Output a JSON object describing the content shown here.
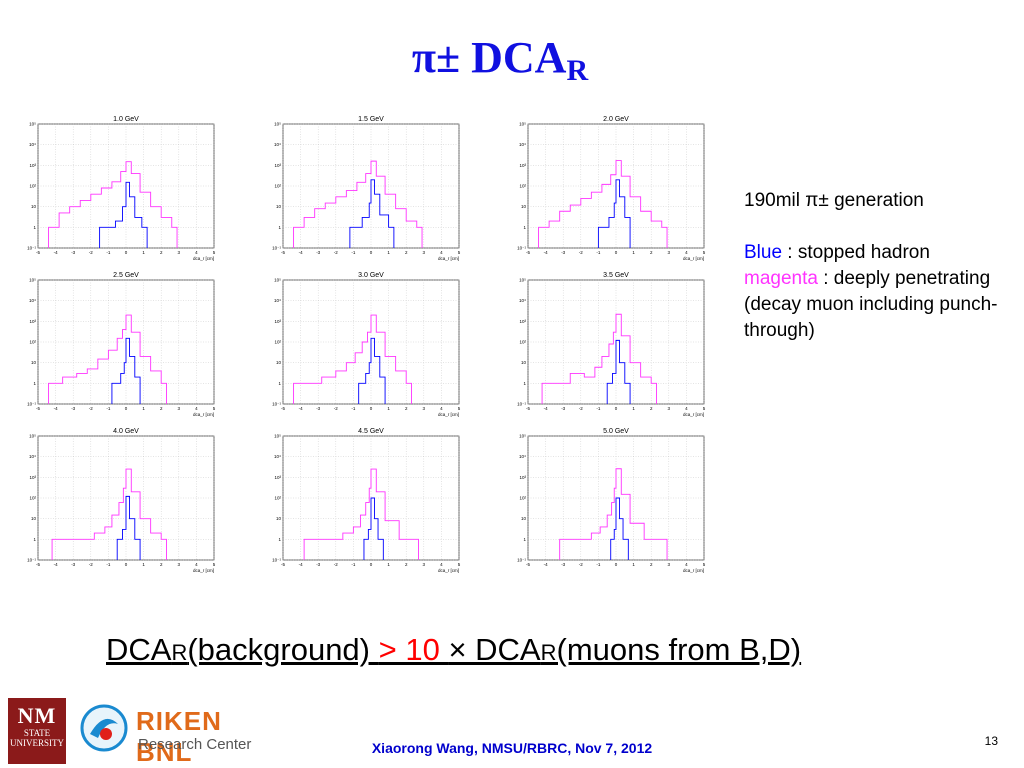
{
  "title": {
    "main": "π± DCA",
    "sub": "R"
  },
  "chart_data": [
    {
      "type": "histogram",
      "title": "1.0 GeV",
      "xlabel": "dca_r [cm]",
      "log_y": true,
      "xlim": [
        -5,
        5
      ],
      "ylim": [
        0.1,
        100000
      ],
      "x_ticks": [
        "-5",
        "-4",
        "-3",
        "-2",
        "-1",
        "0",
        "1",
        "2",
        "3",
        "4",
        "5"
      ],
      "y_ticks": [
        "10⁻¹",
        "1",
        "10",
        "10²",
        "10³",
        "10⁴",
        "10⁵"
      ],
      "series": [
        {
          "color": "#ff33ff",
          "bins": [
            [
              -4.4,
              1
            ],
            [
              -3.8,
              5
            ],
            [
              -3.2,
              10
            ],
            [
              -2.6,
              20
            ],
            [
              -2.0,
              40
            ],
            [
              -1.4,
              80
            ],
            [
              -0.8,
              160
            ],
            [
              -0.3,
              500
            ],
            [
              0,
              1500
            ],
            [
              0.3,
              400
            ],
            [
              0.8,
              50
            ],
            [
              1.4,
              10
            ],
            [
              2.0,
              3
            ],
            [
              2.6,
              1
            ]
          ]
        },
        {
          "color": "#0000ff",
          "bins": [
            [
              -1.5,
              1
            ],
            [
              -0.6,
              2
            ],
            [
              -0.2,
              10
            ],
            [
              0,
              150
            ],
            [
              0.2,
              30
            ],
            [
              0.5,
              3
            ],
            [
              0.9,
              1
            ]
          ]
        }
      ]
    },
    {
      "type": "histogram",
      "title": "1.5 GeV",
      "xlabel": "dca_r [cm]",
      "log_y": true,
      "xlim": [
        -5,
        5
      ],
      "ylim": [
        0.1,
        100000
      ],
      "x_ticks": [
        "-5",
        "-4",
        "-3",
        "-2",
        "-1",
        "0",
        "1",
        "2",
        "3",
        "4",
        "5"
      ],
      "y_ticks": [
        "10⁻¹",
        "1",
        "10",
        "10²",
        "10³",
        "10⁴",
        "10⁵"
      ],
      "series": [
        {
          "color": "#ff33ff",
          "bins": [
            [
              -4.4,
              1
            ],
            [
              -3.8,
              3
            ],
            [
              -3.2,
              8
            ],
            [
              -2.6,
              15
            ],
            [
              -2.0,
              30
            ],
            [
              -1.4,
              60
            ],
            [
              -0.8,
              150
            ],
            [
              -0.3,
              400
            ],
            [
              0,
              1600
            ],
            [
              0.3,
              300
            ],
            [
              0.8,
              40
            ],
            [
              1.4,
              8
            ],
            [
              2.0,
              2
            ],
            [
              2.6,
              1
            ]
          ]
        },
        {
          "color": "#0000ff",
          "bins": [
            [
              -1.2,
              1
            ],
            [
              -0.5,
              3
            ],
            [
              -0.1,
              15
            ],
            [
              0,
              200
            ],
            [
              0.2,
              40
            ],
            [
              0.5,
              4
            ],
            [
              1.0,
              1
            ]
          ]
        }
      ]
    },
    {
      "type": "histogram",
      "title": "2.0 GeV",
      "xlabel": "dca_r [cm]",
      "log_y": true,
      "xlim": [
        -5,
        5
      ],
      "ylim": [
        0.1,
        100000
      ],
      "x_ticks": [
        "-5",
        "-4",
        "-3",
        "-2",
        "-1",
        "0",
        "1",
        "2",
        "3",
        "4",
        "5"
      ],
      "y_ticks": [
        "10⁻¹",
        "1",
        "10",
        "10²",
        "10³",
        "10⁴",
        "10⁵"
      ],
      "series": [
        {
          "color": "#ff33ff",
          "bins": [
            [
              -4.4,
              1
            ],
            [
              -3.8,
              2
            ],
            [
              -3.2,
              6
            ],
            [
              -2.6,
              12
            ],
            [
              -2.0,
              25
            ],
            [
              -1.4,
              50
            ],
            [
              -0.8,
              120
            ],
            [
              -0.3,
              350
            ],
            [
              0,
              1700
            ],
            [
              0.3,
              300
            ],
            [
              0.8,
              30
            ],
            [
              1.4,
              6
            ],
            [
              2.0,
              2
            ],
            [
              2.6,
              1
            ]
          ]
        },
        {
          "color": "#0000ff",
          "bins": [
            [
              -1.0,
              1
            ],
            [
              -0.4,
              3
            ],
            [
              -0.1,
              15
            ],
            [
              0,
              200
            ],
            [
              0.2,
              30
            ],
            [
              0.5,
              3
            ]
          ]
        }
      ]
    },
    {
      "type": "histogram",
      "title": "2.5 GeV",
      "xlabel": "dca_r [cm]",
      "log_y": true,
      "xlim": [
        -5,
        5
      ],
      "ylim": [
        0.1,
        100000
      ],
      "x_ticks": [
        "-5",
        "-4",
        "-3",
        "-2",
        "-1",
        "0",
        "1",
        "2",
        "3",
        "4",
        "5"
      ],
      "y_ticks": [
        "10⁻¹",
        "1",
        "10",
        "10²",
        "10³",
        "10⁴",
        "10⁵"
      ],
      "series": [
        {
          "color": "#ff33ff",
          "bins": [
            [
              -4.4,
              1
            ],
            [
              -3.6,
              2
            ],
            [
              -2.8,
              3
            ],
            [
              -2.2,
              5
            ],
            [
              -1.6,
              15
            ],
            [
              -1.0,
              40
            ],
            [
              -0.5,
              150
            ],
            [
              -0.2,
              400
            ],
            [
              0,
              2000
            ],
            [
              0.3,
              300
            ],
            [
              0.8,
              20
            ],
            [
              1.4,
              4
            ],
            [
              2.0,
              1
            ]
          ]
        },
        {
          "color": "#0000ff",
          "bins": [
            [
              -0.8,
              1
            ],
            [
              -0.3,
              3
            ],
            [
              -0.1,
              10
            ],
            [
              0,
              150
            ],
            [
              0.2,
              20
            ],
            [
              0.5,
              2
            ]
          ]
        }
      ]
    },
    {
      "type": "histogram",
      "title": "3.0 GeV",
      "xlabel": "dca_r [cm]",
      "log_y": true,
      "xlim": [
        -5,
        5
      ],
      "ylim": [
        0.1,
        100000
      ],
      "x_ticks": [
        "-5",
        "-4",
        "-3",
        "-2",
        "-1",
        "0",
        "1",
        "2",
        "3",
        "4",
        "5"
      ],
      "y_ticks": [
        "10⁻¹",
        "1",
        "10",
        "10²",
        "10³",
        "10⁴",
        "10⁵"
      ],
      "series": [
        {
          "color": "#ff33ff",
          "bins": [
            [
              -4.4,
              1
            ],
            [
              -3.6,
              1
            ],
            [
              -2.8,
              2
            ],
            [
              -2.0,
              4
            ],
            [
              -1.4,
              10
            ],
            [
              -0.9,
              30
            ],
            [
              -0.5,
              100
            ],
            [
              -0.2,
              300
            ],
            [
              0,
              2000
            ],
            [
              0.3,
              300
            ],
            [
              0.8,
              20
            ],
            [
              1.4,
              4
            ],
            [
              2.0,
              1
            ]
          ]
        },
        {
          "color": "#0000ff",
          "bins": [
            [
              -0.7,
              1
            ],
            [
              -0.3,
              3
            ],
            [
              -0.1,
              10
            ],
            [
              0,
              150
            ],
            [
              0.2,
              20
            ],
            [
              0.5,
              2
            ]
          ]
        }
      ]
    },
    {
      "type": "histogram",
      "title": "3.5 GeV",
      "xlabel": "dca_r [cm]",
      "log_y": true,
      "xlim": [
        -5,
        5
      ],
      "ylim": [
        0.1,
        100000
      ],
      "x_ticks": [
        "-5",
        "-4",
        "-3",
        "-2",
        "-1",
        "0",
        "1",
        "2",
        "3",
        "4",
        "5"
      ],
      "y_ticks": [
        "10⁻¹",
        "1",
        "10",
        "10²",
        "10³",
        "10⁴",
        "10⁵"
      ],
      "series": [
        {
          "color": "#ff33ff",
          "bins": [
            [
              -4.2,
              1
            ],
            [
              -3.4,
              1
            ],
            [
              -2.6,
              3
            ],
            [
              -1.8,
              2
            ],
            [
              -1.2,
              6
            ],
            [
              -0.8,
              20
            ],
            [
              -0.4,
              80
            ],
            [
              -0.15,
              300
            ],
            [
              0,
              2200
            ],
            [
              0.3,
              200
            ],
            [
              0.8,
              10
            ],
            [
              1.4,
              2
            ],
            [
              2.0,
              1
            ]
          ]
        },
        {
          "color": "#0000ff",
          "bins": [
            [
              -0.5,
              1
            ],
            [
              -0.2,
              3
            ],
            [
              0,
              120
            ],
            [
              0.2,
              10
            ],
            [
              0.5,
              1
            ]
          ]
        }
      ]
    },
    {
      "type": "histogram",
      "title": "4.0 GeV",
      "xlabel": "dca_r [cm]",
      "log_y": true,
      "xlim": [
        -5,
        5
      ],
      "ylim": [
        0.1,
        100000
      ],
      "x_ticks": [
        "-5",
        "-4",
        "-3",
        "-2",
        "-1",
        "0",
        "1",
        "2",
        "3",
        "4",
        "5"
      ],
      "y_ticks": [
        "10⁻¹",
        "1",
        "10",
        "10²",
        "10³",
        "10⁴",
        "10⁵"
      ],
      "series": [
        {
          "color": "#ff33ff",
          "bins": [
            [
              -4.2,
              1
            ],
            [
              -3.4,
              1
            ],
            [
              -2.6,
              1
            ],
            [
              -1.8,
              2
            ],
            [
              -1.2,
              4
            ],
            [
              -0.8,
              15
            ],
            [
              -0.4,
              60
            ],
            [
              -0.15,
              300
            ],
            [
              0,
              2500
            ],
            [
              0.3,
              200
            ],
            [
              0.8,
              10
            ],
            [
              1.4,
              2
            ],
            [
              2.0,
              1
            ]
          ]
        },
        {
          "color": "#0000ff",
          "bins": [
            [
              -0.5,
              1
            ],
            [
              -0.2,
              3
            ],
            [
              0,
              120
            ],
            [
              0.2,
              10
            ],
            [
              0.5,
              1
            ]
          ]
        }
      ]
    },
    {
      "type": "histogram",
      "title": "4.5 GeV",
      "xlabel": "dca_r [cm]",
      "log_y": true,
      "xlim": [
        -5,
        5
      ],
      "ylim": [
        0.1,
        100000
      ],
      "x_ticks": [
        "-5",
        "-4",
        "-3",
        "-2",
        "-1",
        "0",
        "1",
        "2",
        "3",
        "4",
        "5"
      ],
      "y_ticks": [
        "10⁻¹",
        "1",
        "10",
        "10²",
        "10³",
        "10⁴",
        "10⁵"
      ],
      "series": [
        {
          "color": "#ff33ff",
          "bins": [
            [
              -3.8,
              1
            ],
            [
              -2.4,
              1
            ],
            [
              -1.6,
              2
            ],
            [
              -1.0,
              4
            ],
            [
              -0.6,
              15
            ],
            [
              -0.3,
              60
            ],
            [
              -0.1,
              300
            ],
            [
              0,
              2500
            ],
            [
              0.3,
              200
            ],
            [
              0.8,
              8
            ],
            [
              1.6,
              1
            ],
            [
              2.4,
              1
            ]
          ]
        },
        {
          "color": "#0000ff",
          "bins": [
            [
              -0.4,
              1
            ],
            [
              -0.15,
              3
            ],
            [
              0,
              100
            ],
            [
              0.2,
              10
            ],
            [
              0.4,
              1
            ]
          ]
        }
      ]
    },
    {
      "type": "histogram",
      "title": "5.0 GeV",
      "xlabel": "dca_r [cm]",
      "log_y": true,
      "xlim": [
        -5,
        5
      ],
      "ylim": [
        0.1,
        100000
      ],
      "x_ticks": [
        "-5",
        "-4",
        "-3",
        "-2",
        "-1",
        "0",
        "1",
        "2",
        "3",
        "4",
        "5"
      ],
      "y_ticks": [
        "10⁻¹",
        "1",
        "10",
        "10²",
        "10³",
        "10⁴",
        "10⁵"
      ],
      "series": [
        {
          "color": "#ff33ff",
          "bins": [
            [
              -3.2,
              1
            ],
            [
              -2.2,
              1
            ],
            [
              -1.4,
              2
            ],
            [
              -0.9,
              4
            ],
            [
              -0.5,
              15
            ],
            [
              -0.25,
              60
            ],
            [
              -0.1,
              300
            ],
            [
              0,
              2600
            ],
            [
              0.3,
              150
            ],
            [
              0.8,
              6
            ],
            [
              1.6,
              1
            ],
            [
              2.6,
              1
            ]
          ]
        },
        {
          "color": "#0000ff",
          "bins": [
            [
              -0.3,
              1
            ],
            [
              -0.1,
              3
            ],
            [
              0,
              100
            ],
            [
              0.2,
              10
            ],
            [
              0.4,
              1
            ]
          ]
        }
      ]
    }
  ],
  "legend": {
    "line1": "190mil π± generation",
    "blue_word": "Blue",
    "blue_desc": " : stopped hadron",
    "magenta_word": "magenta",
    "magenta_desc": " : deeply penetrating",
    "line4": "(decay muon including punch-through)"
  },
  "statement": {
    "p1": "DCA",
    "s1": "R",
    "p2": "(background) ",
    "red": "> 10 ",
    "p3": "× DCA",
    "s2": "R",
    "p4": "(muons from B,D)"
  },
  "footer": "Xiaorong Wang, NMSU/RBRC, Nov 7, 2012",
  "page_number": "13",
  "logos": {
    "nmsu_big": "NM",
    "nmsu_small1": "STATE",
    "nmsu_small2": "UNIVERSITY",
    "riken_name": "RIKEN BNL",
    "riken_sub": "Research Center"
  },
  "colors": {
    "title": "#1010e0",
    "blue_series": "#0000ff",
    "magenta_series": "#ff33ff",
    "highlight": "#ff0000"
  }
}
